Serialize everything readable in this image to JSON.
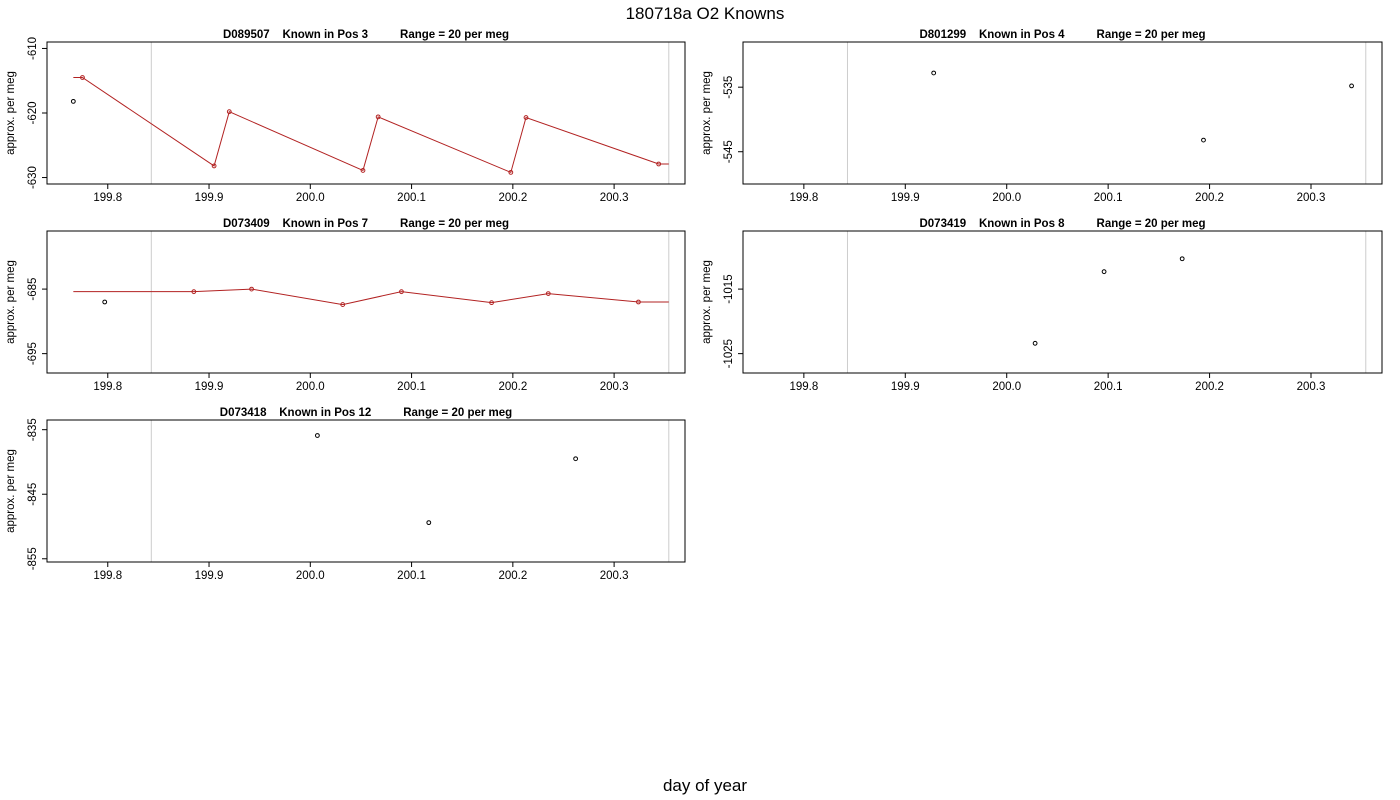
{
  "figure": {
    "title": "180718a   O2 Knowns",
    "xlabel": "day of year"
  },
  "colors": {
    "line": "#b22222",
    "point_matched": "#b22222",
    "point_unmatched": "#000000",
    "box": "#000000",
    "vline": "#cccccc"
  },
  "chart_data": [
    {
      "type": "scatter",
      "title": "D089507    Known in Pos 3          Range = 20 per meg",
      "ylabel": "approx. per meg",
      "xlim": [
        199.74,
        200.37
      ],
      "ylim": [
        -631,
        -609
      ],
      "xticks": [
        "199.8",
        "199.9",
        "200.0",
        "200.1",
        "200.2",
        "200.3"
      ],
      "yticks": [
        "-610",
        "-620",
        "-630"
      ],
      "vlines": [
        199.843,
        200.354
      ],
      "series": [
        {
          "style": "line",
          "x": [
            199.766,
            199.775,
            199.905,
            199.92,
            200.052,
            200.067,
            200.198,
            200.213,
            200.344,
            200.354
          ],
          "y": [
            -614.5,
            -614.5,
            -628.2,
            -619.8,
            -628.9,
            -620.6,
            -629.2,
            -620.7,
            -627.9,
            -627.9
          ]
        },
        {
          "style": "points-red",
          "x": [
            199.775,
            199.905,
            199.92,
            200.052,
            200.067,
            200.198,
            200.213,
            200.344
          ],
          "y": [
            -614.5,
            -628.2,
            -619.8,
            -628.9,
            -620.6,
            -629.2,
            -620.7,
            -627.9
          ]
        },
        {
          "style": "points-black",
          "x": [
            199.766
          ],
          "y": [
            -618.2
          ]
        }
      ]
    },
    {
      "type": "scatter",
      "title": "D801299    Known in Pos 4          Range = 20 per meg",
      "ylabel": "approx. per meg",
      "xlim": [
        199.74,
        200.37
      ],
      "ylim": [
        -550,
        -528
      ],
      "xticks": [
        "199.8",
        "199.9",
        "200.0",
        "200.1",
        "200.2",
        "200.3"
      ],
      "yticks": [
        "-535",
        "-545"
      ],
      "vlines": [
        199.843,
        200.354
      ],
      "series": [
        {
          "style": "points-black",
          "x": [
            199.928,
            200.194,
            200.34
          ],
          "y": [
            -532.8,
            -543.2,
            -534.8
          ]
        }
      ]
    },
    {
      "type": "scatter",
      "title": "D073409    Known in Pos 7          Range = 20 per meg",
      "ylabel": "approx. per meg",
      "xlim": [
        199.74,
        200.37
      ],
      "ylim": [
        -698,
        -676
      ],
      "xticks": [
        "199.8",
        "199.9",
        "200.0",
        "200.1",
        "200.2",
        "200.3"
      ],
      "yticks": [
        "-685",
        "-695"
      ],
      "vlines": [
        199.843,
        200.354
      ],
      "series": [
        {
          "style": "line",
          "x": [
            199.766,
            199.885,
            199.942,
            200.032,
            200.09,
            200.179,
            200.235,
            200.324,
            200.354
          ],
          "y": [
            -685.4,
            -685.4,
            -685.0,
            -687.4,
            -685.4,
            -687.1,
            -685.7,
            -687.0,
            -687.0
          ]
        },
        {
          "style": "points-red",
          "x": [
            199.885,
            199.942,
            200.032,
            200.09,
            200.179,
            200.235,
            200.324
          ],
          "y": [
            -685.4,
            -685.0,
            -687.4,
            -685.4,
            -687.1,
            -685.7,
            -687.0
          ]
        },
        {
          "style": "points-black",
          "x": [
            199.797
          ],
          "y": [
            -687.0
          ]
        }
      ]
    },
    {
      "type": "scatter",
      "title": "D073419    Known in Pos 8          Range = 20 per meg",
      "ylabel": "approx. per meg",
      "xlim": [
        199.74,
        200.37
      ],
      "ylim": [
        -1028,
        -1006
      ],
      "xticks": [
        "199.8",
        "199.9",
        "200.0",
        "200.1",
        "200.2",
        "200.3"
      ],
      "yticks": [
        "-1015",
        "-1025"
      ],
      "vlines": [
        199.843,
        200.354
      ],
      "series": [
        {
          "style": "points-black",
          "x": [
            200.028,
            200.096,
            200.173
          ],
          "y": [
            -1023.4,
            -1012.3,
            -1010.3
          ]
        }
      ]
    },
    {
      "type": "scatter",
      "title": "D073418    Known in Pos 12          Range = 20 per meg",
      "ylabel": "approx. per meg",
      "xlim": [
        199.74,
        200.37
      ],
      "ylim": [
        -855.5,
        -833.5
      ],
      "xticks": [
        "199.8",
        "199.9",
        "200.0",
        "200.1",
        "200.2",
        "200.3"
      ],
      "yticks": [
        "-835",
        "-845",
        "-855"
      ],
      "vlines": [
        199.843,
        200.354
      ],
      "series": [
        {
          "style": "points-black",
          "x": [
            200.007,
            200.117,
            200.262
          ],
          "y": [
            -835.9,
            -849.4,
            -839.5
          ]
        }
      ]
    }
  ]
}
